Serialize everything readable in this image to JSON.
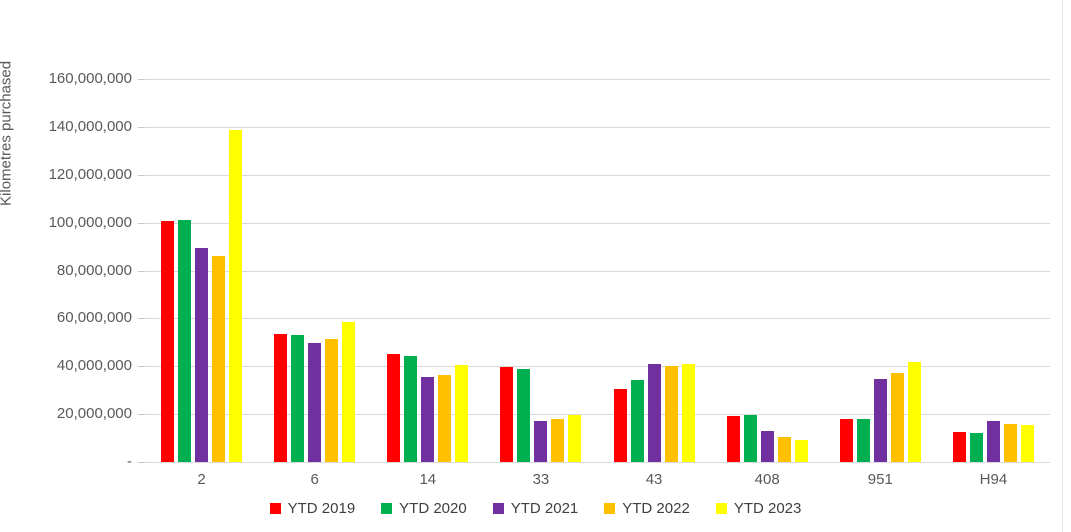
{
  "chart_data": {
    "type": "bar",
    "title": "",
    "xlabel": "",
    "ylabel": "Kilometres purchased",
    "ylim": [
      0,
      160000000
    ],
    "ytick_step": 20000000,
    "ytick_labels_top_to_bottom": [
      "160,000,000",
      "140,000,000",
      "120,000,000",
      "100,000,000",
      "80,000,000",
      "60,000,000",
      "40,000,000",
      "20,000,000",
      "-"
    ],
    "grid": true,
    "legend_position": "bottom",
    "categories": [
      "2",
      "6",
      "14",
      "33",
      "43",
      "408",
      "951",
      "H94"
    ],
    "series": [
      {
        "name": "YTD 2019",
        "color": "#FF0000",
        "values": [
          100800000,
          53400000,
          45000000,
          39600000,
          30700000,
          19400000,
          17800000,
          12600000
        ]
      },
      {
        "name": "YTD 2020",
        "color": "#00B050",
        "values": [
          100900000,
          53100000,
          44100000,
          38700000,
          34100000,
          19600000,
          18100000,
          12200000
        ]
      },
      {
        "name": "YTD 2021",
        "color": "#7030A0",
        "values": [
          89600000,
          49700000,
          35700000,
          17200000,
          40800000,
          12900000,
          34800000,
          17200000
        ]
      },
      {
        "name": "YTD 2022",
        "color": "#FFC000",
        "values": [
          86000000,
          51500000,
          36300000,
          17900000,
          39900000,
          10500000,
          37100000,
          16000000
        ]
      },
      {
        "name": "YTD 2023",
        "color": "#FFFF00",
        "values": [
          138600000,
          58400000,
          40400000,
          19800000,
          41100000,
          9100000,
          41700000,
          15400000
        ]
      }
    ]
  }
}
